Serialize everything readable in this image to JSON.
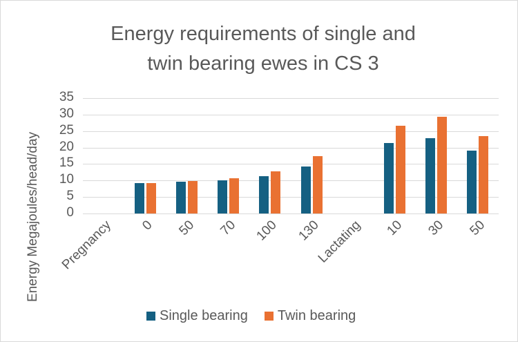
{
  "chart_data": {
    "type": "bar",
    "title": "Energy requirements of single and twin bearing ewes in CS 3",
    "title_lines": [
      "Energy requirements of single and",
      "twin bearing ewes in CS 3"
    ],
    "xlabel": "",
    "ylabel": "Energy Megajoules/head/day",
    "ylim": [
      0,
      35
    ],
    "yticks": [
      0,
      5,
      10,
      15,
      20,
      25,
      30,
      35
    ],
    "grid": true,
    "legend_position": "bottom",
    "categories": [
      "Pregnancy",
      "0",
      "50",
      "70",
      "100",
      "130",
      "Lactating",
      "10",
      "30",
      "50"
    ],
    "series": [
      {
        "name": "Single bearing",
        "color": "#156082",
        "values": [
          null,
          9.2,
          9.6,
          10.0,
          11.4,
          14.3,
          null,
          21.3,
          22.9,
          19.0
        ]
      },
      {
        "name": "Twin bearing",
        "color": "#E97132",
        "values": [
          null,
          9.2,
          9.9,
          10.6,
          12.8,
          17.5,
          null,
          26.7,
          29.3,
          23.5
        ]
      }
    ]
  }
}
